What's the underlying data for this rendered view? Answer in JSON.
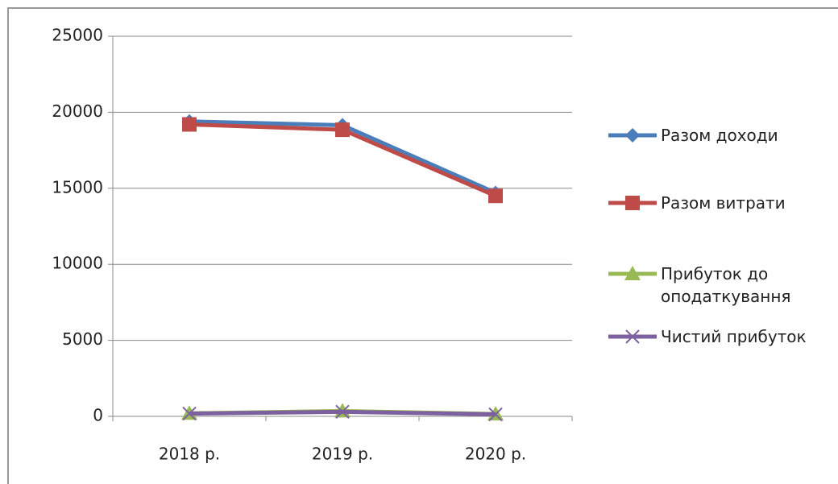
{
  "chart_data": {
    "type": "line",
    "categories": [
      "2018 р.",
      "2019 р.",
      "2020 р."
    ],
    "series": [
      {
        "name": "Разом доходи",
        "color": "#4a7ebb",
        "marker": "diamond",
        "values": [
          19400,
          19150,
          14700
        ]
      },
      {
        "name": "Разом витрати",
        "color": "#be4b48",
        "marker": "square",
        "values": [
          19200,
          18850,
          14500
        ]
      },
      {
        "name": "Прибуток до оподаткування",
        "color": "#98b954",
        "marker": "triangle",
        "values": [
          200,
          350,
          150
        ]
      },
      {
        "name": "Чистий прибуток",
        "color": "#7d60a0",
        "marker": "x",
        "values": [
          180,
          300,
          130
        ]
      }
    ],
    "ylim": [
      0,
      25000
    ],
    "yticks": [
      0,
      5000,
      10000,
      15000,
      20000,
      25000
    ],
    "grid": true,
    "legend": "right"
  }
}
